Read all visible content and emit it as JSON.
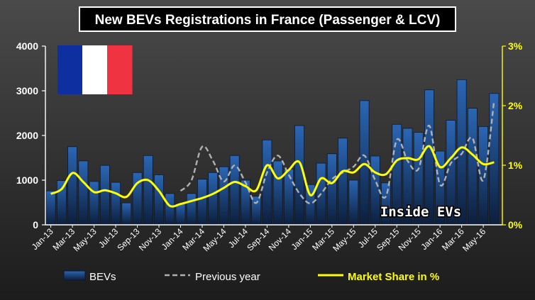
{
  "chart_data": {
    "type": "bar",
    "title": "New BEVs Registrations in France (Passenger & LCV)",
    "watermark": "Inside EVs",
    "categories": [
      "Jan-13",
      "Feb-13",
      "Mar-13",
      "Apr-13",
      "May-13",
      "Jun-13",
      "Jul-13",
      "Aug-13",
      "Sep-13",
      "Oct-13",
      "Nov-13",
      "Dec-13",
      "Jan-14",
      "Feb-14",
      "Mar-14",
      "Apr-14",
      "May-14",
      "Jun-14",
      "Jul-14",
      "Aug-14",
      "Sep-14",
      "Oct-14",
      "Nov-14",
      "Dec-14",
      "Jan-15",
      "Feb-15",
      "Mar-15",
      "Apr-15",
      "May-15",
      "Jun-15",
      "Jul-15",
      "Aug-15",
      "Sep-15",
      "Oct-15",
      "Nov-15",
      "Dec-15",
      "Jan-16",
      "Feb-16",
      "Mar-16",
      "Apr-16",
      "May-16",
      "Jun-16"
    ],
    "x_tick_labels": [
      "Jan-13",
      "Mar-13",
      "May-13",
      "Jul-13",
      "Sep-13",
      "Nov-13",
      "Jan-14",
      "Mar-14",
      "May-14",
      "Jul-14",
      "Sep-14",
      "Nov-14",
      "Jan-15",
      "Mar-15",
      "May-15",
      "Jul-15",
      "Sep-15",
      "Nov-15",
      "Jan-16",
      "Mar-16",
      "May-16"
    ],
    "y_ticks": [
      "0",
      "1000",
      "2000",
      "3000",
      "4000"
    ],
    "y2_ticks": [
      "0%",
      "1%",
      "2%",
      "3%"
    ],
    "ylim": [
      0,
      4000
    ],
    "y2lim": [
      0,
      3
    ],
    "series": [
      {
        "name": "BEVs",
        "kind": "bar",
        "axis": "left",
        "values": [
          760,
          990,
          1750,
          1430,
          970,
          1330,
          950,
          490,
          1170,
          1550,
          1120,
          700,
          480,
          700,
          1020,
          1170,
          1300,
          1550,
          1000,
          640,
          1900,
          1430,
          1250,
          2220,
          900,
          1380,
          1590,
          1940,
          1000,
          2780,
          1540,
          940,
          2250,
          2160,
          2070,
          3020,
          1650,
          2340,
          3250,
          2610,
          2200,
          2940
        ]
      },
      {
        "name": "Previous year",
        "kind": "line",
        "axis": "left",
        "values": [
          null,
          null,
          null,
          null,
          null,
          null,
          null,
          null,
          null,
          null,
          null,
          null,
          760,
          990,
          1750,
          1430,
          970,
          1330,
          950,
          490,
          1170,
          1550,
          1120,
          700,
          480,
          700,
          1020,
          1170,
          1300,
          1550,
          1000,
          640,
          1900,
          1430,
          1250,
          2220,
          900,
          1380,
          1590,
          1940,
          1000,
          2780
        ]
      },
      {
        "name": "Market Share in %",
        "kind": "line",
        "axis": "right",
        "values": [
          0.52,
          0.6,
          0.87,
          0.72,
          0.55,
          0.58,
          0.53,
          0.47,
          0.7,
          0.75,
          0.57,
          0.32,
          0.35,
          0.4,
          0.45,
          0.52,
          0.62,
          0.72,
          0.65,
          0.58,
          1.0,
          0.78,
          0.92,
          1.05,
          0.5,
          0.78,
          0.7,
          0.9,
          0.88,
          1.02,
          0.88,
          0.85,
          1.08,
          1.12,
          1.1,
          1.32,
          0.97,
          1.12,
          1.3,
          1.18,
          1.02,
          1.05
        ]
      }
    ],
    "colors": {
      "background": "#2e2e2e",
      "bar": "#1c4b86",
      "market_share": "#ffff00",
      "previous_year": "#b0b0b0",
      "y2_axis": "#ffff00"
    },
    "legend_position": "bottom",
    "grid": false
  },
  "flag": {
    "colors": [
      "#0d2fa0",
      "#ffffff",
      "#ef3340"
    ]
  }
}
